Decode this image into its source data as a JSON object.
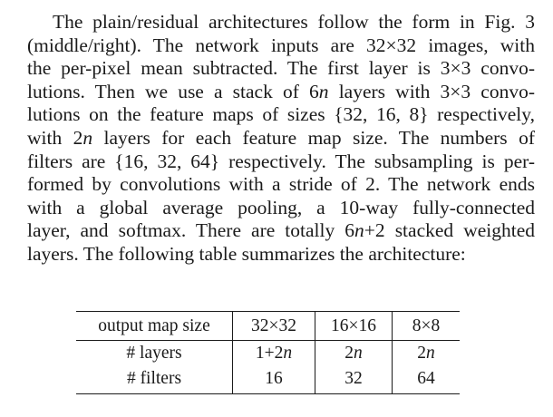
{
  "paragraph": {
    "lines": [
      "The plain/residual architectures follow the form in Fig. 3",
      "(middle/right). The network inputs are 32×32 images, with",
      "the per-pixel mean subtracted. The first layer is 3×3 convo-",
      "lutions. Then we use a stack of 6n layers with 3×3 convo-",
      "lutions on the feature maps of sizes {32, 16, 8} respectively,",
      "with 2n layers for each feature map size. The numbers of",
      "filters are {16, 32, 64} respectively. The subsampling is per-",
      "formed by convolutions with a stride of 2. The network ends",
      "with a global average pooling, a 10-way fully-connected",
      "layer, and softmax. There are totally 6n+2 stacked weighted",
      "layers. The following table summarizes the architecture:"
    ]
  },
  "table": {
    "header": [
      "output map size",
      "32×32",
      "16×16",
      "8×8"
    ],
    "rows": [
      [
        "# layers",
        "1+2n",
        "2n",
        "2n"
      ],
      [
        "# filters",
        "16",
        "32",
        "64"
      ]
    ]
  }
}
